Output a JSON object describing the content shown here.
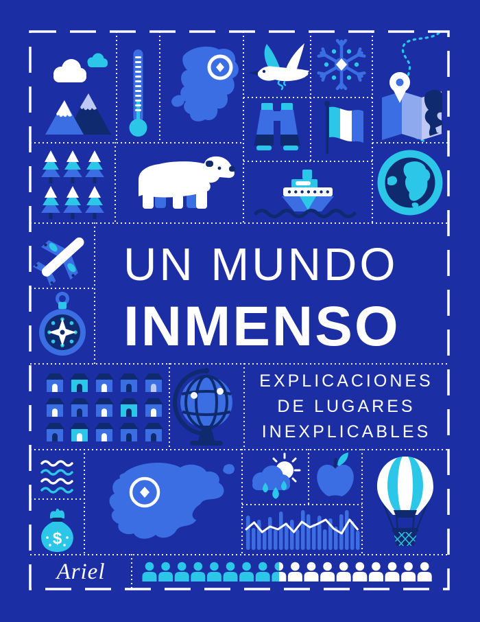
{
  "palette": {
    "bg": "#1c2ea4",
    "blue": "#3b6de3",
    "cyan": "#2cc6e9",
    "navy": "#0f2a6e",
    "mid": "#8fa9ee",
    "periwinkle": "#bdc9f4",
    "white": "#ffffff"
  },
  "cover": {
    "title_line1": "UN MUNDO",
    "title_line2": "INMENSO",
    "subtitle_line1": "EXPLICACIONES",
    "subtitle_line2": "DE LUGARES",
    "subtitle_line3": "INEXPLICABLES",
    "publisher": "Ariel"
  },
  "houses": {
    "cols": 5,
    "rows": 3,
    "variants": [
      {
        "body": "blue",
        "door": "white"
      },
      {
        "body": "cyan",
        "door": "navy"
      },
      {
        "body": "blue",
        "door": "white"
      },
      {
        "body": "blue",
        "door": "navy"
      },
      {
        "body": "blue",
        "door": "periwinkle"
      },
      {
        "body": "blue",
        "door": "white"
      },
      {
        "body": "blue",
        "door": "navy"
      },
      {
        "body": "blue",
        "door": "white"
      },
      {
        "body": "cyan",
        "door": "navy"
      },
      {
        "body": "blue",
        "door": "white"
      },
      {
        "body": "blue",
        "door": "navy"
      },
      {
        "body": "cyan",
        "door": "white"
      },
      {
        "body": "blue",
        "door": "white"
      },
      {
        "body": "blue",
        "door": "navy"
      },
      {
        "body": "blue",
        "door": "navy"
      }
    ]
  },
  "waves": {
    "colors": [
      "white",
      "cyan",
      "white",
      "cyan"
    ]
  },
  "trees": {
    "count": 6,
    "layer_colors": [
      "white",
      "cyan",
      "blue"
    ]
  },
  "people": {
    "colors": [
      "cyan",
      "cyan",
      "cyan",
      "cyan",
      "cyan",
      "cyan",
      "cyan",
      "cyan",
      "half",
      "white",
      "white",
      "white",
      "white",
      "white",
      "white",
      "white",
      "white",
      "white"
    ]
  },
  "decor_chart": {
    "bars": [
      50,
      32,
      44,
      28,
      48,
      30,
      56,
      40,
      44,
      30,
      58,
      52,
      38,
      50,
      30,
      46,
      34,
      52,
      58,
      42,
      28
    ],
    "line_y": [
      36,
      26,
      40,
      32,
      36,
      28,
      40,
      25,
      33,
      28,
      22,
      35,
      42,
      22,
      36
    ]
  }
}
